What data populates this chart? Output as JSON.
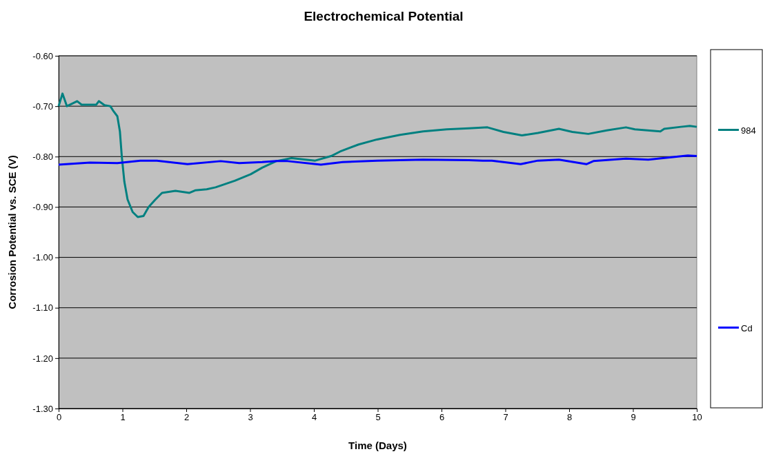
{
  "chart_data": {
    "type": "line",
    "title": "Electrochemical Potential",
    "xlabel": "Time (Days)",
    "ylabel": "Corrosion Potential vs. SCE (V)",
    "xlim": [
      0,
      10
    ],
    "xticks": [
      0,
      1,
      2,
      3,
      4,
      5,
      6,
      7,
      8,
      9,
      10
    ],
    "ylim": [
      -1.3,
      -0.6
    ],
    "yticks": [
      {
        "value": -1.3,
        "label": "-1.30"
      },
      {
        "value": -1.2,
        "label": "-1.20"
      },
      {
        "value": -1.1,
        "label": "-1.10"
      },
      {
        "value": -1.0,
        "label": "-1.00"
      },
      {
        "value": -0.9,
        "label": "-0.90"
      },
      {
        "value": -0.8,
        "label": "-0.80"
      },
      {
        "value": -0.7,
        "label": "-0.70"
      },
      {
        "value": -0.6,
        "label": "-0.60"
      }
    ],
    "grid": "y",
    "legend": "right",
    "marker": "none",
    "line_style": "solid",
    "series": [
      {
        "name": "984",
        "color": "#008080",
        "x": [
          0,
          0.06,
          0.13,
          0.29,
          0.36,
          0.49,
          0.59,
          0.63,
          0.72,
          0.81,
          0.86,
          0.92,
          0.96,
          0.99,
          1.03,
          1.08,
          1.16,
          1.24,
          1.33,
          1.41,
          1.51,
          1.62,
          1.83,
          2.05,
          2.14,
          2.32,
          2.46,
          2.76,
          3.01,
          3.19,
          3.41,
          3.65,
          4.02,
          4.27,
          4.41,
          4.7,
          4.99,
          5.35,
          5.71,
          6.08,
          6.43,
          6.72,
          6.97,
          7.26,
          7.51,
          7.84,
          8.05,
          8.3,
          8.59,
          8.89,
          9.03,
          9.43,
          9.49,
          9.75,
          9.89,
          10
        ],
        "values": [
          -0.7,
          -0.675,
          -0.7,
          -0.69,
          -0.697,
          -0.697,
          -0.697,
          -0.69,
          -0.698,
          -0.7,
          -0.71,
          -0.72,
          -0.75,
          -0.8,
          -0.85,
          -0.885,
          -0.91,
          -0.92,
          -0.918,
          -0.9,
          -0.886,
          -0.872,
          -0.868,
          -0.872,
          -0.867,
          -0.865,
          -0.861,
          -0.848,
          -0.835,
          -0.822,
          -0.809,
          -0.803,
          -0.808,
          -0.799,
          -0.79,
          -0.776,
          -0.766,
          -0.757,
          -0.75,
          -0.746,
          -0.744,
          -0.742,
          -0.751,
          -0.758,
          -0.753,
          -0.745,
          -0.751,
          -0.755,
          -0.748,
          -0.742,
          -0.746,
          -0.75,
          -0.745,
          -0.741,
          -0.739,
          -0.741
        ]
      },
      {
        "name": "Cd",
        "color": "#0000ff",
        "x": [
          0,
          0.49,
          0.92,
          1.28,
          1.54,
          2.02,
          2.54,
          2.83,
          3.19,
          3.41,
          3.59,
          4.11,
          4.45,
          4.99,
          5.71,
          6.43,
          6.65,
          6.79,
          7.24,
          7.51,
          7.84,
          8.27,
          8.38,
          8.89,
          9.24,
          9.86,
          10
        ],
        "values": [
          -0.816,
          -0.812,
          -0.813,
          -0.808,
          -0.808,
          -0.815,
          -0.809,
          -0.813,
          -0.811,
          -0.809,
          -0.809,
          -0.816,
          -0.811,
          -0.808,
          -0.806,
          -0.807,
          -0.808,
          -0.808,
          -0.815,
          -0.808,
          -0.806,
          -0.815,
          -0.809,
          -0.804,
          -0.806,
          -0.798,
          -0.799
        ]
      }
    ]
  }
}
